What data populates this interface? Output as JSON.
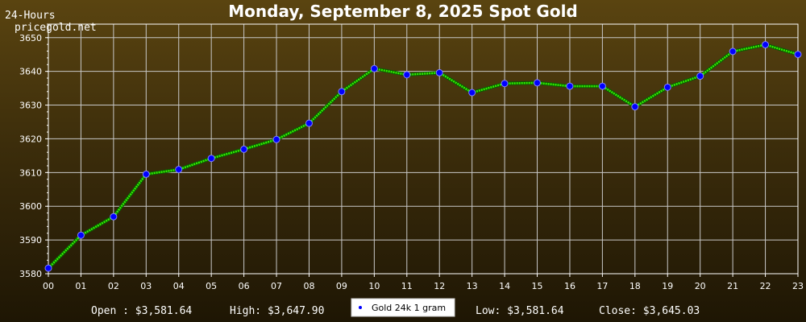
{
  "header": {
    "title": "Monday, September 8, 2025 Spot Gold",
    "period": "24-Hours",
    "site": "pricegold.net"
  },
  "stats": {
    "open": "Open : $3,581.64",
    "high": "High: $3,647.90",
    "low": "Low: $3,581.64",
    "close": "Close: $3,645.03"
  },
  "colors": {
    "line": "#33ee00",
    "marker_fill": "#0000ff",
    "grid": "#c8c8c8",
    "axis": "#ffffff"
  },
  "chart_data": {
    "type": "line",
    "title": "Monday, September 8, 2025 Spot Gold",
    "xlabel": "",
    "ylabel": "",
    "categories": [
      "00",
      "01",
      "02",
      "03",
      "04",
      "05",
      "06",
      "07",
      "08",
      "09",
      "10",
      "11",
      "12",
      "13",
      "14",
      "15",
      "16",
      "17",
      "18",
      "19",
      "20",
      "21",
      "22",
      "23"
    ],
    "ylim": [
      3580,
      3654
    ],
    "yticks": [
      3580,
      3590,
      3600,
      3610,
      3620,
      3630,
      3640,
      3650
    ],
    "grid": true,
    "legend": "bottom-center",
    "series": [
      {
        "name": "Gold 24k 1 gram",
        "values": [
          3581.64,
          3591.4,
          3596.9,
          3609.5,
          3610.9,
          3614.2,
          3616.9,
          3619.8,
          3624.6,
          3634.0,
          3640.8,
          3639.0,
          3639.6,
          3633.7,
          3636.4,
          3636.6,
          3635.6,
          3635.6,
          3629.5,
          3635.3,
          3638.6,
          3645.9,
          3647.9,
          3645.03
        ]
      }
    ]
  }
}
